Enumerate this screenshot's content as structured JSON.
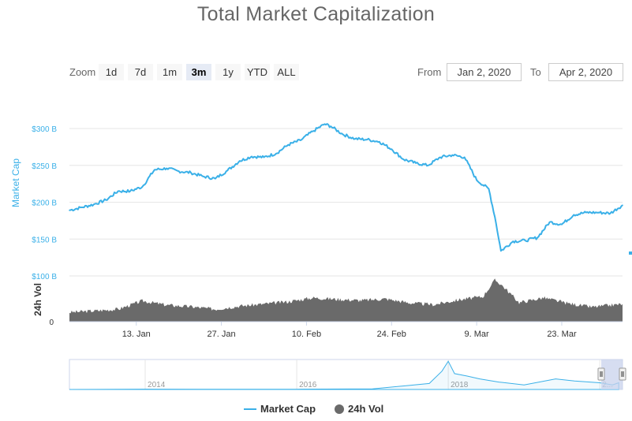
{
  "title": "Total Market Capitalization",
  "zoom": {
    "label": "Zoom",
    "buttons": [
      "1d",
      "7d",
      "1m",
      "3m",
      "1y",
      "YTD",
      "ALL"
    ],
    "active": "3m"
  },
  "range": {
    "from_label": "From",
    "from_value": "Jan 2, 2020",
    "to_label": "To",
    "to_value": "Apr 2, 2020"
  },
  "colors": {
    "market_cap": "#3ab0e8",
    "volume": "#6a6a6a",
    "navigator_mask": "#c8d2ec"
  },
  "chart_data": [
    {
      "type": "line",
      "title": "",
      "ylabel": "Market Cap",
      "yticks": [
        "$100 B",
        "$150 B",
        "$200 B",
        "$250 B",
        "$300 B"
      ],
      "ylim": [
        100,
        320
      ],
      "xlim": [
        "2020-01-02",
        "2020-04-02"
      ],
      "xticks": [
        "13. Jan",
        "27. Jan",
        "10. Feb",
        "24. Feb",
        "9. Mar",
        "23. Mar"
      ],
      "series": [
        {
          "name": "Market Cap",
          "x": [
            "2020-01-02",
            "2020-01-04",
            "2020-01-06",
            "2020-01-08",
            "2020-01-10",
            "2020-01-12",
            "2020-01-14",
            "2020-01-16",
            "2020-01-18",
            "2020-01-20",
            "2020-01-22",
            "2020-01-24",
            "2020-01-26",
            "2020-01-28",
            "2020-01-30",
            "2020-02-01",
            "2020-02-03",
            "2020-02-05",
            "2020-02-07",
            "2020-02-09",
            "2020-02-11",
            "2020-02-13",
            "2020-02-14",
            "2020-02-16",
            "2020-02-18",
            "2020-02-20",
            "2020-02-22",
            "2020-02-24",
            "2020-02-26",
            "2020-02-28",
            "2020-03-01",
            "2020-03-03",
            "2020-03-05",
            "2020-03-07",
            "2020-03-09",
            "2020-03-11",
            "2020-03-12",
            "2020-03-13",
            "2020-03-15",
            "2020-03-17",
            "2020-03-19",
            "2020-03-21",
            "2020-03-23",
            "2020-03-25",
            "2020-03-27",
            "2020-03-29",
            "2020-03-31",
            "2020-04-02"
          ],
          "values": [
            189,
            193,
            197,
            203,
            215,
            215,
            221,
            244,
            246,
            242,
            240,
            235,
            232,
            243,
            256,
            262,
            261,
            266,
            278,
            284,
            296,
            306,
            303,
            292,
            286,
            285,
            282,
            272,
            258,
            253,
            250,
            261,
            264,
            261,
            230,
            218,
            180,
            134,
            147,
            148,
            152,
            173,
            170,
            183,
            186,
            186,
            185,
            196
          ]
        }
      ]
    },
    {
      "type": "area",
      "ylabel": "24h Vol",
      "yticks": [
        "0"
      ],
      "series": [
        {
          "name": "24h Vol",
          "x": [
            "2020-01-02",
            "2020-01-06",
            "2020-01-10",
            "2020-01-14",
            "2020-01-18",
            "2020-01-22",
            "2020-01-26",
            "2020-01-30",
            "2020-02-03",
            "2020-02-07",
            "2020-02-11",
            "2020-02-15",
            "2020-02-19",
            "2020-02-23",
            "2020-02-27",
            "2020-03-02",
            "2020-03-06",
            "2020-03-10",
            "2020-03-12",
            "2020-03-13",
            "2020-03-16",
            "2020-03-20",
            "2020-03-24",
            "2020-03-28",
            "2020-04-02"
          ],
          "values": [
            45,
            52,
            60,
            100,
            80,
            72,
            60,
            75,
            85,
            96,
            115,
            108,
            102,
            110,
            90,
            82,
            105,
            120,
            200,
            180,
            92,
            115,
            88,
            70,
            85
          ]
        }
      ]
    },
    {
      "type": "area",
      "title": "",
      "xticks": [
        "2014",
        "2016",
        "2018",
        "2..."
      ],
      "series": [
        {
          "name": "Market Cap (navigator)",
          "x": [
            "2013-01",
            "2014-01",
            "2015-01",
            "2016-01",
            "2017-01",
            "2017-06",
            "2017-10",
            "2017-12",
            "2018-01",
            "2018-02",
            "2018-04",
            "2018-06",
            "2018-09",
            "2019-01",
            "2019-06",
            "2019-09",
            "2020-01",
            "2020-03",
            "2020-04"
          ],
          "values": [
            1,
            10,
            5,
            7,
            17,
            100,
            170,
            520,
            800,
            450,
            380,
            300,
            210,
            130,
            300,
            240,
            190,
            130,
            190
          ]
        }
      ]
    }
  ],
  "legend": {
    "items": [
      "Market Cap",
      "24h Vol"
    ]
  }
}
